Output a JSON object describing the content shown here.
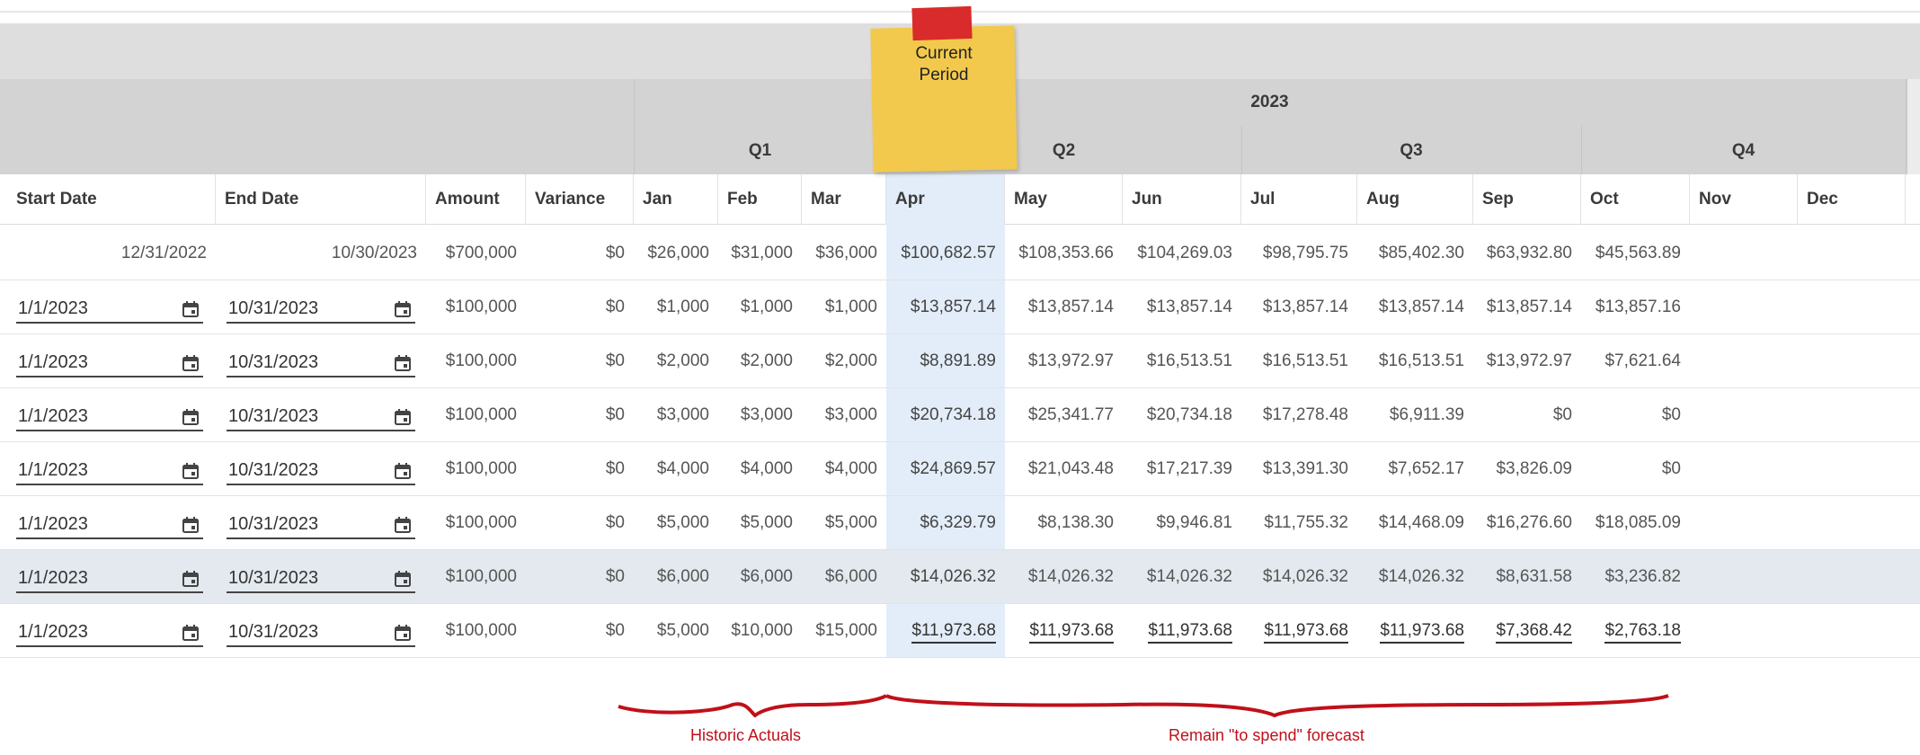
{
  "header": {
    "year": "2023",
    "quarters": [
      "Q1",
      "Q2",
      "Q3",
      "Q4"
    ]
  },
  "columns": [
    "Start Date",
    "End Date",
    "Amount",
    "Variance",
    "Jan",
    "Feb",
    "Mar",
    "Apr",
    "May",
    "Jun",
    "Jul",
    "Aug",
    "Sep",
    "Oct",
    "Nov",
    "Dec"
  ],
  "note": {
    "line1": "Current",
    "line2": "Period"
  },
  "summary_row": {
    "start": "12/31/2022",
    "end": "10/30/2023",
    "amount": "$700,000",
    "variance": "$0",
    "months": [
      "$26,000",
      "$31,000",
      "$36,000",
      "$100,682.57",
      "$108,353.66",
      "$104,269.03",
      "$98,795.75",
      "$85,402.30",
      "$63,932.80",
      "$45,563.89"
    ]
  },
  "rows": [
    {
      "start": "1/1/2023",
      "end": "10/31/2023",
      "amount": "$100,000",
      "variance": "$0",
      "months": [
        "$1,000",
        "$1,000",
        "$1,000",
        "$13,857.14",
        "$13,857.14",
        "$13,857.14",
        "$13,857.14",
        "$13,857.14",
        "$13,857.14",
        "$13,857.16"
      ]
    },
    {
      "start": "1/1/2023",
      "end": "10/31/2023",
      "amount": "$100,000",
      "variance": "$0",
      "months": [
        "$2,000",
        "$2,000",
        "$2,000",
        "$8,891.89",
        "$13,972.97",
        "$16,513.51",
        "$16,513.51",
        "$16,513.51",
        "$13,972.97",
        "$7,621.64"
      ]
    },
    {
      "start": "1/1/2023",
      "end": "10/31/2023",
      "amount": "$100,000",
      "variance": "$0",
      "months": [
        "$3,000",
        "$3,000",
        "$3,000",
        "$20,734.18",
        "$25,341.77",
        "$20,734.18",
        "$17,278.48",
        "$6,911.39",
        "$0",
        "$0"
      ]
    },
    {
      "start": "1/1/2023",
      "end": "10/31/2023",
      "amount": "$100,000",
      "variance": "$0",
      "months": [
        "$4,000",
        "$4,000",
        "$4,000",
        "$24,869.57",
        "$21,043.48",
        "$17,217.39",
        "$13,391.30",
        "$7,652.17",
        "$3,826.09",
        "$0"
      ]
    },
    {
      "start": "1/1/2023",
      "end": "10/31/2023",
      "amount": "$100,000",
      "variance": "$0",
      "months": [
        "$5,000",
        "$5,000",
        "$5,000",
        "$6,329.79",
        "$8,138.30",
        "$9,946.81",
        "$11,755.32",
        "$14,468.09",
        "$16,276.60",
        "$18,085.09"
      ]
    },
    {
      "start": "1/1/2023",
      "end": "10/31/2023",
      "amount": "$100,000",
      "variance": "$0",
      "months": [
        "$6,000",
        "$6,000",
        "$6,000",
        "$14,026.32",
        "$14,026.32",
        "$14,026.32",
        "$14,026.32",
        "$14,026.32",
        "$8,631.58",
        "$3,236.82"
      ]
    },
    {
      "start": "1/1/2023",
      "end": "10/31/2023",
      "amount": "$100,000",
      "variance": "$0",
      "months": [
        "$5,000",
        "$10,000",
        "$15,000",
        "$11,973.68",
        "$11,973.68",
        "$11,973.68",
        "$11,973.68",
        "$11,973.68",
        "$7,368.42",
        "$2,763.18"
      ]
    }
  ],
  "annotations": {
    "historic": "Historic Actuals",
    "forecast": "Remain \"to spend\" forecast"
  },
  "colors": {
    "selected_column": "#e3edf9",
    "highlight_row": "#e3e9ef",
    "annotation": "#c0101a",
    "note": "#f2c94c",
    "tape": "#d92b2b"
  }
}
